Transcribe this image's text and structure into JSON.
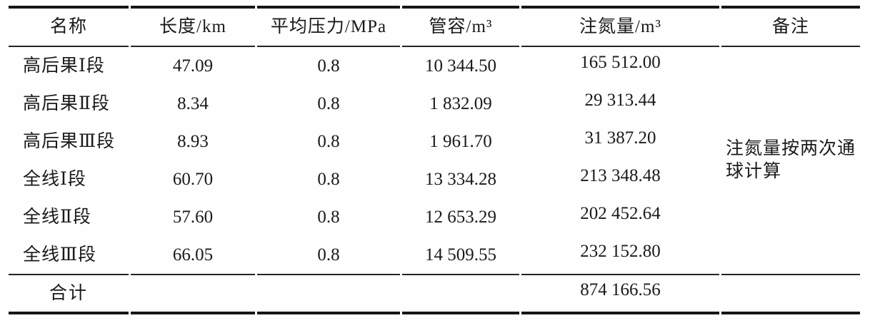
{
  "table": {
    "headers": [
      "名称",
      "长度/km",
      "平均压力/MPa",
      "管容/m³",
      "注氮量/m³",
      "备注"
    ],
    "rows": [
      {
        "name": "高后果Ⅰ段",
        "length_km": "47.09",
        "pressure_mpa": "0.8",
        "capacity_m3": "10 344.50",
        "nitrogen_m3": "165 512.00"
      },
      {
        "name": "高后果Ⅱ段",
        "length_km": "8.34",
        "pressure_mpa": "0.8",
        "capacity_m3": "1 832.09",
        "nitrogen_m3": "29 313.44"
      },
      {
        "name": "高后果Ⅲ段",
        "length_km": "8.93",
        "pressure_mpa": "0.8",
        "capacity_m3": "1 961.70",
        "nitrogen_m3": "31 387.20"
      },
      {
        "name": "全线Ⅰ段",
        "length_km": "60.70",
        "pressure_mpa": "0.8",
        "capacity_m3": "13 334.28",
        "nitrogen_m3": "213 348.48"
      },
      {
        "name": "全线Ⅱ段",
        "length_km": "57.60",
        "pressure_mpa": "0.8",
        "capacity_m3": "12 653.29",
        "nitrogen_m3": "202 452.64"
      },
      {
        "name": "全线Ⅲ段",
        "length_km": "66.05",
        "pressure_mpa": "0.8",
        "capacity_m3": "14 509.55",
        "nitrogen_m3": "232 152.80"
      }
    ],
    "remark": "注氮量按两次通球计算",
    "total": {
      "label": "合计",
      "nitrogen_m3": "874 166.56"
    }
  },
  "colors": {
    "text": "#1a1a1a",
    "thick_rule": "#161616",
    "thin_rule": "#242424",
    "background": "#fefefe"
  }
}
